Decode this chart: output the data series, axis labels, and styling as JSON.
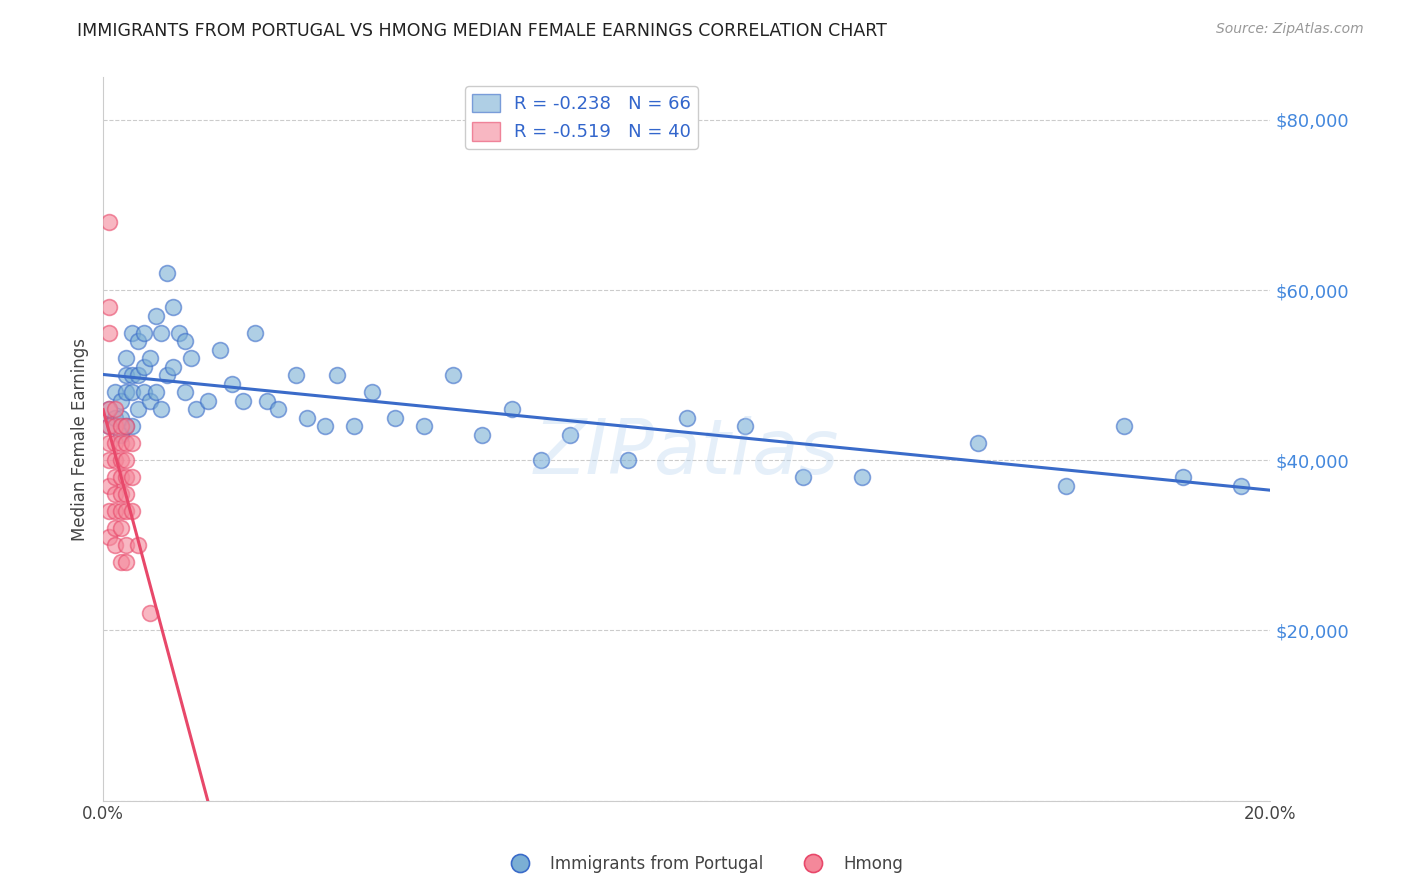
{
  "title": "IMMIGRANTS FROM PORTUGAL VS HMONG MEDIAN FEMALE EARNINGS CORRELATION CHART",
  "source": "Source: ZipAtlas.com",
  "ylabel": "Median Female Earnings",
  "xlim": [
    0.0,
    0.2
  ],
  "ylim": [
    0,
    85000
  ],
  "yticks": [
    0,
    20000,
    40000,
    60000,
    80000
  ],
  "xticks": [
    0.0,
    0.04,
    0.08,
    0.12,
    0.16,
    0.2
  ],
  "portugal_color": "#7BAFD4",
  "hmong_color": "#F4889A",
  "portugal_line_color": "#3A6BC9",
  "hmong_line_color": "#E8486A",
  "legend_label_portugal": "Immigrants from Portugal",
  "legend_label_hmong": "Hmong",
  "R_portugal": -0.238,
  "N_portugal": 66,
  "R_hmong": -0.519,
  "N_hmong": 40,
  "portugal_x": [
    0.001,
    0.001,
    0.002,
    0.002,
    0.003,
    0.003,
    0.003,
    0.004,
    0.004,
    0.004,
    0.004,
    0.005,
    0.005,
    0.005,
    0.005,
    0.006,
    0.006,
    0.006,
    0.007,
    0.007,
    0.007,
    0.008,
    0.008,
    0.009,
    0.009,
    0.01,
    0.01,
    0.011,
    0.011,
    0.012,
    0.012,
    0.013,
    0.014,
    0.014,
    0.015,
    0.016,
    0.018,
    0.02,
    0.022,
    0.024,
    0.026,
    0.028,
    0.03,
    0.033,
    0.035,
    0.038,
    0.04,
    0.043,
    0.046,
    0.05,
    0.055,
    0.06,
    0.065,
    0.07,
    0.075,
    0.08,
    0.09,
    0.1,
    0.11,
    0.12,
    0.13,
    0.15,
    0.165,
    0.175,
    0.185,
    0.195
  ],
  "portugal_y": [
    46000,
    44000,
    48000,
    45000,
    47000,
    45000,
    43000,
    52000,
    50000,
    48000,
    44000,
    55000,
    50000,
    48000,
    44000,
    54000,
    50000,
    46000,
    55000,
    51000,
    48000,
    52000,
    47000,
    57000,
    48000,
    55000,
    46000,
    62000,
    50000,
    58000,
    51000,
    55000,
    54000,
    48000,
    52000,
    46000,
    47000,
    53000,
    49000,
    47000,
    55000,
    47000,
    46000,
    50000,
    45000,
    44000,
    50000,
    44000,
    48000,
    45000,
    44000,
    50000,
    43000,
    46000,
    40000,
    43000,
    40000,
    45000,
    44000,
    38000,
    38000,
    42000,
    37000,
    44000,
    38000,
    37000
  ],
  "hmong_x": [
    0.001,
    0.001,
    0.001,
    0.001,
    0.001,
    0.001,
    0.001,
    0.001,
    0.001,
    0.001,
    0.002,
    0.002,
    0.002,
    0.002,
    0.002,
    0.002,
    0.002,
    0.002,
    0.002,
    0.003,
    0.003,
    0.003,
    0.003,
    0.003,
    0.003,
    0.003,
    0.003,
    0.004,
    0.004,
    0.004,
    0.004,
    0.004,
    0.004,
    0.004,
    0.004,
    0.005,
    0.005,
    0.005,
    0.006,
    0.008
  ],
  "hmong_y": [
    68000,
    58000,
    55000,
    46000,
    44000,
    42000,
    40000,
    37000,
    34000,
    31000,
    46000,
    44000,
    42000,
    40000,
    38000,
    36000,
    34000,
    32000,
    30000,
    44000,
    42000,
    40000,
    38000,
    36000,
    34000,
    32000,
    28000,
    44000,
    42000,
    40000,
    38000,
    36000,
    34000,
    30000,
    28000,
    42000,
    38000,
    34000,
    30000,
    22000
  ],
  "watermark": "ZIPatlas",
  "background_color": "#FFFFFF",
  "grid_color": "#CCCCCC"
}
